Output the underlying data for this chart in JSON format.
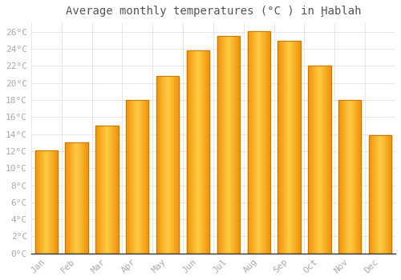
{
  "title": "Average monthly temperatures (°C ) in Ḩablah",
  "months": [
    "Jan",
    "Feb",
    "Mar",
    "Apr",
    "May",
    "Jun",
    "Jul",
    "Aug",
    "Sep",
    "Oct",
    "Nov",
    "Dec"
  ],
  "values": [
    12.1,
    13.0,
    15.0,
    18.0,
    20.8,
    23.8,
    25.5,
    26.1,
    24.9,
    22.0,
    18.0,
    13.9
  ],
  "bar_color_light": "#FFCC44",
  "bar_color_dark": "#F0920A",
  "bar_edge_color": "#C87800",
  "background_color": "#FFFFFF",
  "grid_color": "#dddddd",
  "ylim": [
    0,
    27
  ],
  "ytick_step": 2,
  "title_fontsize": 10,
  "tick_fontsize": 8,
  "font_color": "#aaaaaa",
  "title_color": "#555555",
  "bar_width": 0.75
}
